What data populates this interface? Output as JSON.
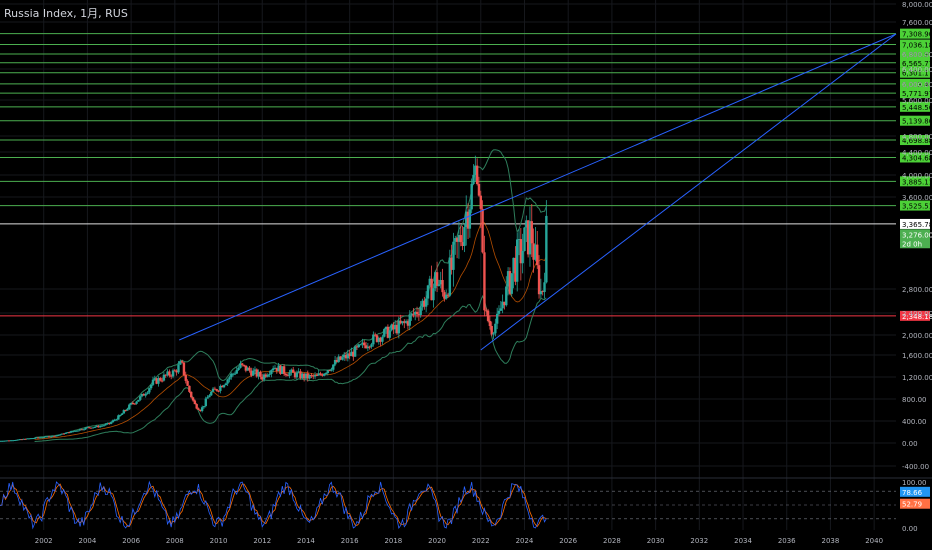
{
  "header": {
    "title": "Russia Index, 1月, RUS"
  },
  "colors": {
    "background": "#000000",
    "grid": "#16181d",
    "axis_text": "#b2b5be",
    "up_candle": "#26a69a",
    "down_candle": "#ef5350",
    "bollinger_band": "#2e7d5b",
    "moving_average": "#ff6d00",
    "trendline": "#2962ff",
    "level_line": "#4caf50",
    "level_label_bg": "#4cd137",
    "support_line": "#f23645",
    "current_price_bg": "#4caf50",
    "stoch_k": "#2962ff",
    "stoch_d": "#ff6d00",
    "stoch_k_label_bg": "#2196f3",
    "stoch_d_label_bg": "#ff7043"
  },
  "chart_data": [
    {
      "type": "candlestick",
      "title": "Russia Index, 1月, RUS",
      "x_ticks": [
        "2002",
        "2004",
        "2006",
        "2008",
        "2010",
        "2012",
        "2014",
        "2016",
        "2018",
        "2020",
        "2022",
        "2024",
        "2026",
        "2028",
        "2030",
        "2032",
        "2034",
        "2036",
        "2038",
        "2040"
      ],
      "x_range": [
        2000.0,
        2041.0
      ],
      "y_ticks": [
        "8,000.00",
        "7,600.00",
        "6,800.00",
        "6,400.00",
        "6,000.00",
        "5,600.00",
        "4,800.00",
        "4,400.00",
        "4,000.00",
        "3,600.00",
        "2,800.00",
        "2,400.00",
        "2,000.00",
        "1,600.00",
        "1,200.00",
        "800.00",
        "400.00",
        "0.00",
        "-400.00"
      ],
      "y_tick_values": [
        8000,
        7600,
        6800,
        6400,
        6000,
        5600,
        4800,
        4400,
        4000,
        3600,
        2800,
        2400,
        2000,
        1600,
        1200,
        800,
        400,
        0,
        -400
      ],
      "price_series": {
        "name": "Russia Index",
        "points": [
          [
            2000.0,
            40
          ],
          [
            2000.5,
            50
          ],
          [
            2001.0,
            70
          ],
          [
            2001.5,
            90
          ],
          [
            2002.0,
            110
          ],
          [
            2002.5,
            130
          ],
          [
            2003.0,
            180
          ],
          [
            2003.5,
            230
          ],
          [
            2004.0,
            280
          ],
          [
            2004.5,
            300
          ],
          [
            2005.0,
            350
          ],
          [
            2005.5,
            500
          ],
          [
            2006.0,
            700
          ],
          [
            2006.5,
            850
          ],
          [
            2007.0,
            1100
          ],
          [
            2007.5,
            1200
          ],
          [
            2008.0,
            1300
          ],
          [
            2008.3,
            1450
          ],
          [
            2008.6,
            1000
          ],
          [
            2008.9,
            700
          ],
          [
            2009.2,
            600
          ],
          [
            2009.6,
            900
          ],
          [
            2010.0,
            1000
          ],
          [
            2010.5,
            1200
          ],
          [
            2011.0,
            1400
          ],
          [
            2011.5,
            1300
          ],
          [
            2012.0,
            1200
          ],
          [
            2012.5,
            1400
          ],
          [
            2013.0,
            1300
          ],
          [
            2013.5,
            1250
          ],
          [
            2014.0,
            1200
          ],
          [
            2014.5,
            1200
          ],
          [
            2015.0,
            1350
          ],
          [
            2015.5,
            1500
          ],
          [
            2016.0,
            1600
          ],
          [
            2016.5,
            1750
          ],
          [
            2017.0,
            1900
          ],
          [
            2017.5,
            2000
          ],
          [
            2018.0,
            2100
          ],
          [
            2018.5,
            2200
          ],
          [
            2019.0,
            2400
          ],
          [
            2019.5,
            2650
          ],
          [
            2020.0,
            2900
          ],
          [
            2020.3,
            2700
          ],
          [
            2020.7,
            3000
          ],
          [
            2021.0,
            3200
          ],
          [
            2021.5,
            3600
          ],
          [
            2021.8,
            4200
          ],
          [
            2022.0,
            3400
          ],
          [
            2022.2,
            2400
          ],
          [
            2022.5,
            2100
          ],
          [
            2022.8,
            2300
          ],
          [
            2023.0,
            2600
          ],
          [
            2023.5,
            3000
          ],
          [
            2023.8,
            3100
          ],
          [
            2024.0,
            3200
          ],
          [
            2024.3,
            3300
          ],
          [
            2024.6,
            2900
          ],
          [
            2024.8,
            2700
          ],
          [
            2025.0,
            3276
          ]
        ]
      },
      "indicators": [
        "Bollinger Bands",
        "Moving Average"
      ],
      "horizontal_levels": [
        {
          "label": "7,308.90",
          "value": 7308.9
        },
        {
          "label": "7,036.18",
          "value": 7036.18
        },
        {
          "label": "6,800.97",
          "value": 6800.97
        },
        {
          "label": "6,565.77",
          "value": 6565.77
        },
        {
          "label": "6,301.17",
          "value": 6301.17
        },
        {
          "label": "6,003.40",
          "value": 6003.4
        },
        {
          "label": "5,771.97",
          "value": 5771.97
        },
        {
          "label": "5,448.56",
          "value": 5448.56
        },
        {
          "label": "5,139.86",
          "value": 5139.86
        },
        {
          "label": "4,698.88",
          "value": 4698.88
        },
        {
          "label": "4,304.68",
          "value": 4304.68
        },
        {
          "label": "3,885.11",
          "value": 3885.11
        },
        {
          "label": "3,525.51",
          "value": 3525.51
        }
      ],
      "reference_lines": [
        {
          "label": "3,365.78",
          "value": 3365.78,
          "kind": "white"
        },
        {
          "label": "2,348.18",
          "value": 2348.18,
          "kind": "support"
        }
      ],
      "current_price": {
        "label": "3,276.00",
        "sublabel": "2d 0h",
        "value": 3276.0
      },
      "trendlines": [
        {
          "from": [
            2008.2,
            1900
          ],
          "to": [
            2041.0,
            7300
          ]
        },
        {
          "from": [
            2022.0,
            1700
          ],
          "to": [
            2041.0,
            7300
          ]
        }
      ]
    },
    {
      "type": "line",
      "indicator": "Stochastic RSI",
      "y_ticks": [
        "100.00",
        "0.00"
      ],
      "y_tick_values": [
        100,
        0
      ],
      "levels": [
        80,
        50,
        20
      ],
      "current_values": [
        {
          "label": "78.66",
          "series": "k"
        },
        {
          "label": "52.79",
          "series": "d"
        }
      ]
    }
  ]
}
